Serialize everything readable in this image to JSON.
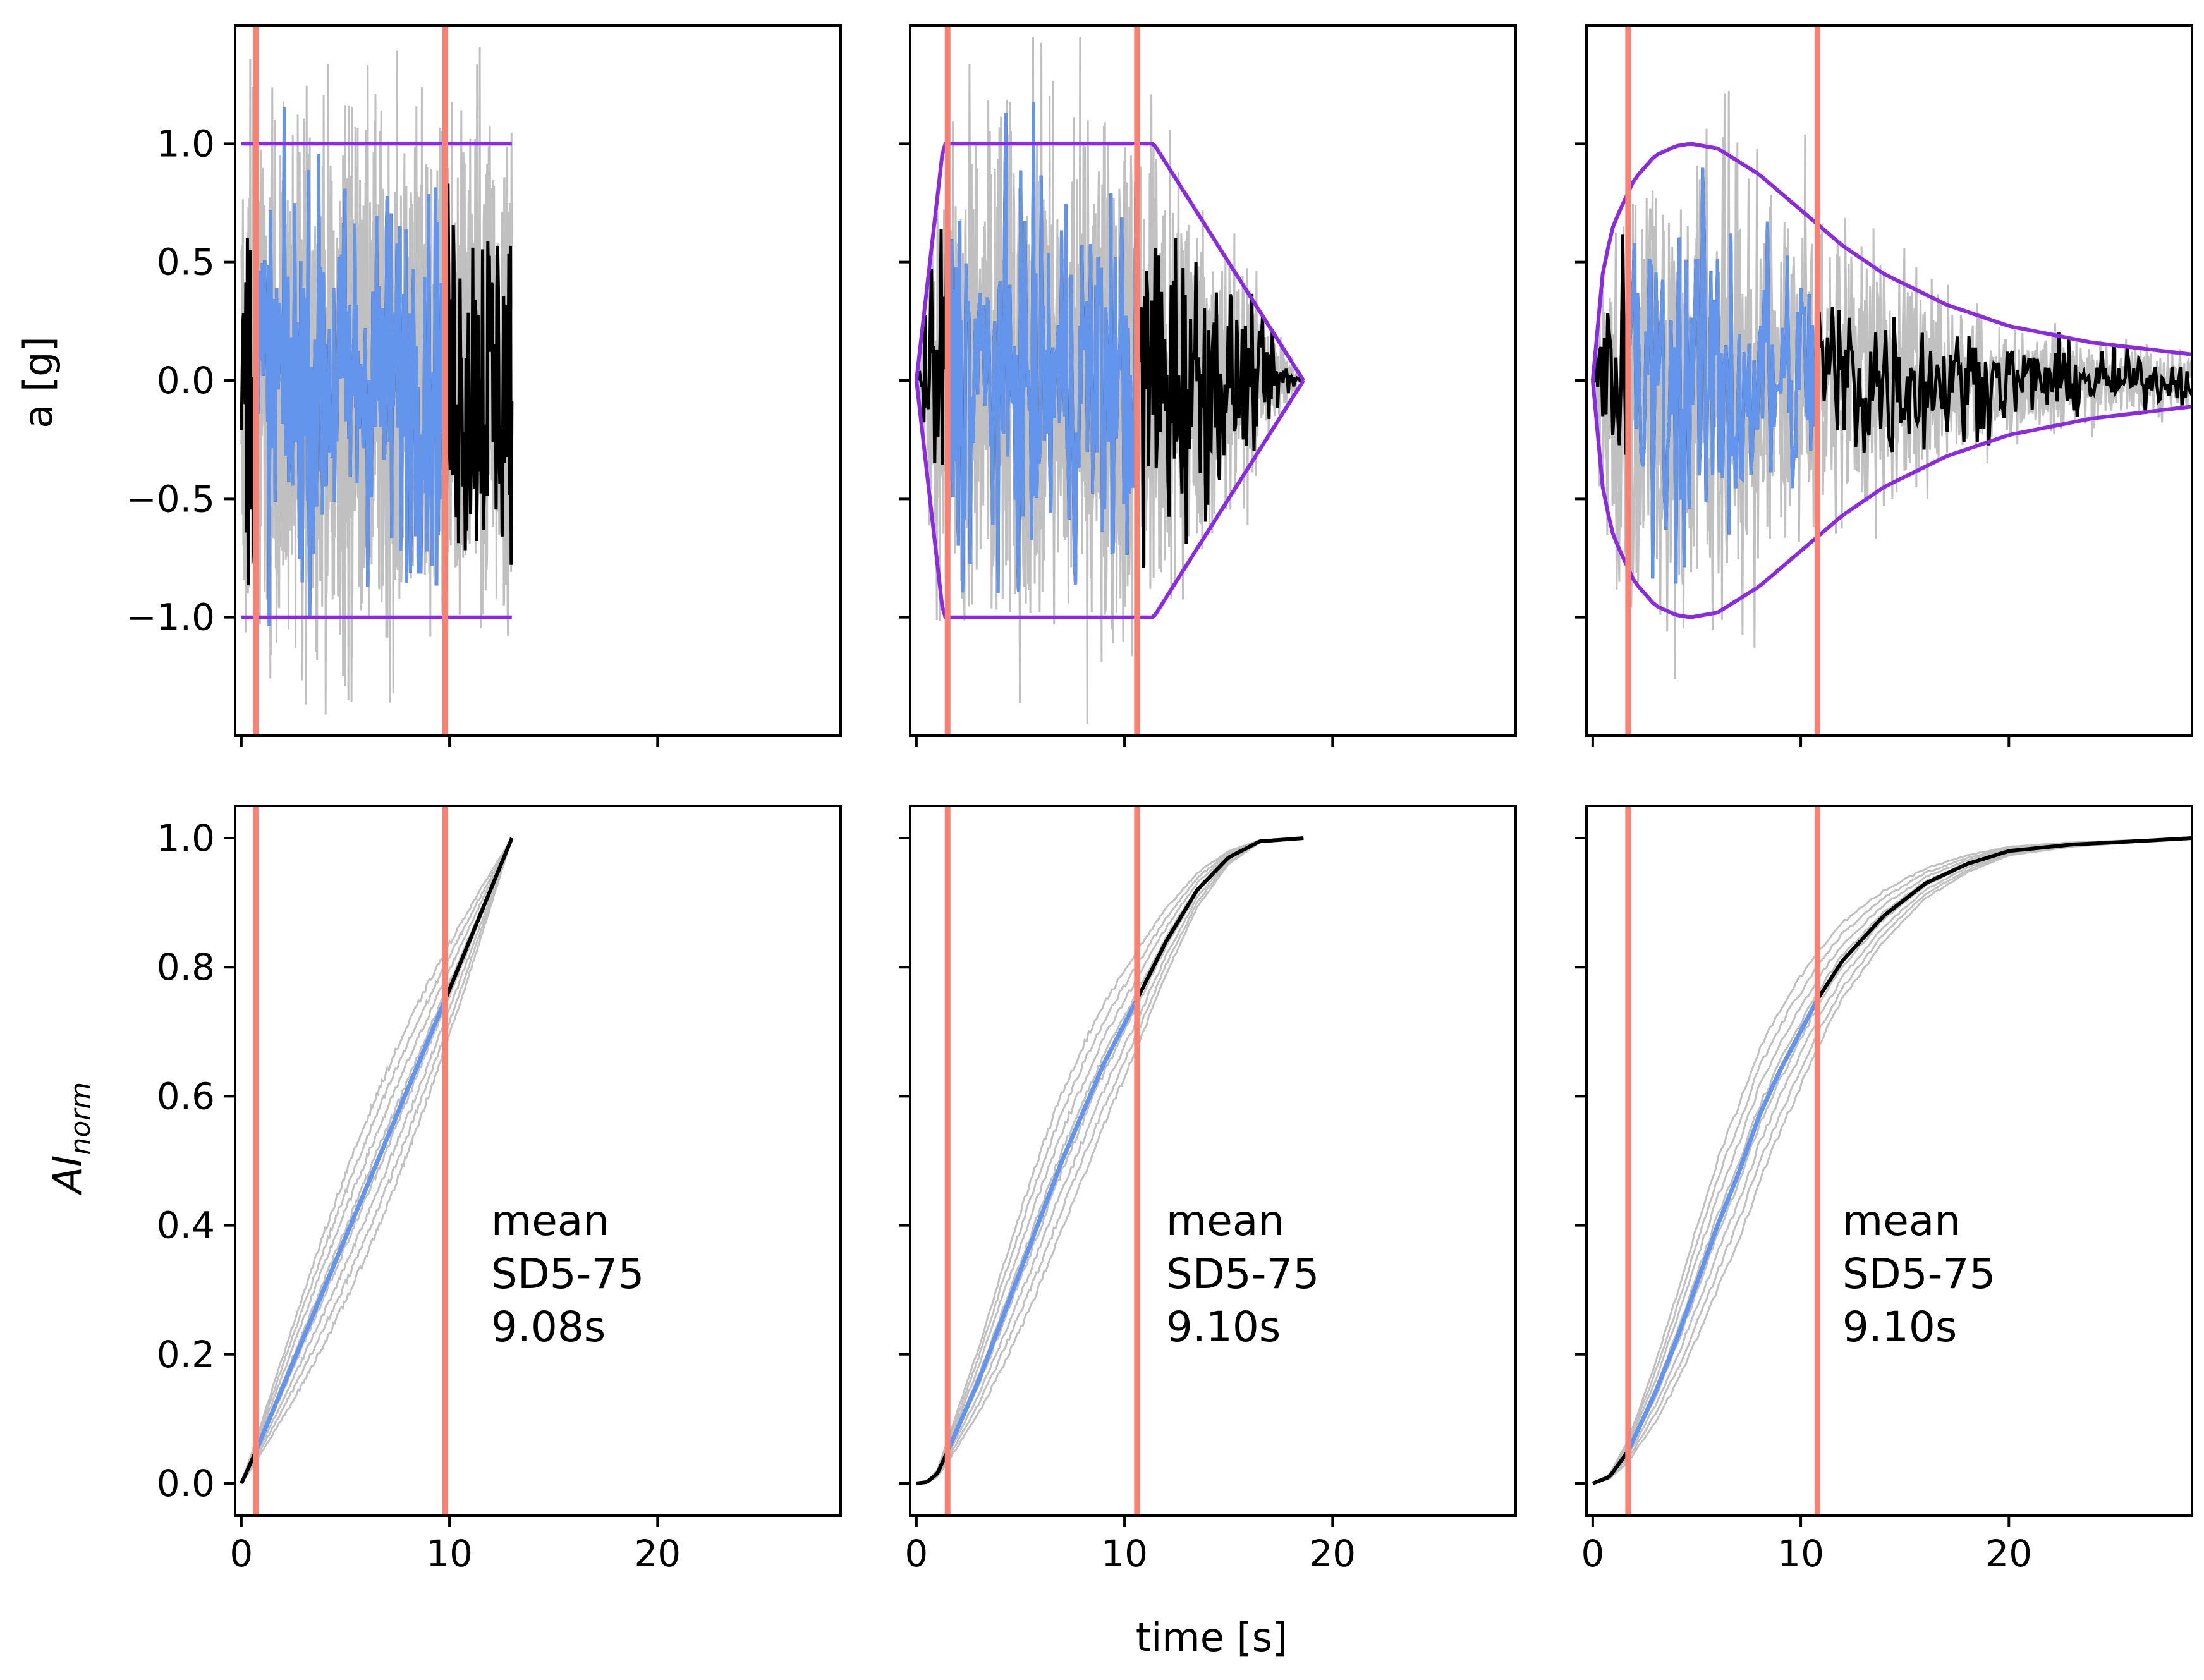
{
  "figure": {
    "ylabel_top": "a [g]",
    "ylabel_bottom_main": "AI",
    "ylabel_bottom_sub": "norm",
    "xlabel": "time [s]"
  },
  "colors": {
    "record": "#000000",
    "significant": "#6495ed",
    "ensemble": "#c0c0c0",
    "envelope": "#8a2be2",
    "marker": "#fa8072"
  },
  "chart_data": [
    {
      "type": "line",
      "name": "acceleration-uniform-envelope",
      "xlabel": "",
      "ylabel": "a [g]",
      "xlim": [
        -0.3,
        28.8
      ],
      "ylim": [
        -1.5,
        1.5
      ],
      "xticks": [
        0,
        10,
        20
      ],
      "yticks": [
        -1.0,
        -0.5,
        0.0,
        0.5,
        1.0
      ],
      "show_x_tick_labels": false,
      "show_y_tick_labels": true,
      "duration": 13.0,
      "sd_start": 0.7,
      "sd_end": 9.8,
      "envelope": {
        "x": [
          0,
          13
        ],
        "y": [
          1.0,
          1.0
        ]
      }
    },
    {
      "type": "line",
      "name": "acceleration-trapezoidal-envelope",
      "xlabel": "",
      "ylabel": "",
      "xlim": [
        -0.3,
        28.8
      ],
      "ylim": [
        -1.5,
        1.5
      ],
      "xticks": [
        0,
        10,
        20
      ],
      "yticks": [
        -1.0,
        -0.5,
        0.0,
        0.5,
        1.0
      ],
      "show_x_tick_labels": false,
      "show_y_tick_labels": false,
      "duration": 18.6,
      "sd_start": 1.5,
      "sd_end": 10.6,
      "envelope": {
        "x": [
          0,
          1.3,
          11.4,
          18.6
        ],
        "y": [
          0.0,
          1.0,
          1.0,
          0.0
        ]
      }
    },
    {
      "type": "line",
      "name": "acceleration-smooth-envelope",
      "xlabel": "",
      "ylabel": "",
      "xlim": [
        -0.3,
        28.8
      ],
      "ylim": [
        -1.5,
        1.5
      ],
      "xticks": [
        0,
        10,
        20
      ],
      "yticks": [
        -1.0,
        -0.5,
        0.0,
        0.5,
        1.0
      ],
      "show_x_tick_labels": false,
      "show_y_tick_labels": false,
      "duration": 28.8,
      "sd_start": 1.7,
      "sd_end": 10.8,
      "envelope": {
        "x": [
          0,
          0.5,
          1,
          2,
          3,
          4,
          4.7,
          6,
          8,
          10,
          12,
          14,
          17,
          20,
          24,
          28.8
        ],
        "y": [
          0.0,
          0.47,
          0.66,
          0.85,
          0.95,
          0.99,
          1.0,
          0.98,
          0.87,
          0.72,
          0.57,
          0.45,
          0.32,
          0.23,
          0.16,
          0.11
        ]
      }
    },
    {
      "type": "line",
      "name": "arias-intensity-uniform",
      "xlabel": "",
      "ylabel": "AI norm",
      "xlim": [
        -0.3,
        28.8
      ],
      "ylim": [
        -0.05,
        1.05
      ],
      "xticks": [
        0,
        10,
        20
      ],
      "yticks": [
        0.0,
        0.2,
        0.4,
        0.6,
        0.8,
        1.0
      ],
      "show_x_tick_labels": true,
      "show_y_tick_labels": true,
      "duration": 13.0,
      "sd_start": 0.7,
      "sd_end": 9.8,
      "curve": {
        "x": [
          0,
          0.7,
          9.8,
          13.0
        ],
        "y": [
          0.0,
          0.05,
          0.75,
          1.0
        ]
      },
      "annotation": [
        "mean",
        "SD5-75",
        "9.08s"
      ]
    },
    {
      "type": "line",
      "name": "arias-intensity-trapezoidal",
      "xlabel": "",
      "ylabel": "",
      "xlim": [
        -0.3,
        28.8
      ],
      "ylim": [
        -0.05,
        1.05
      ],
      "xticks": [
        0,
        10,
        20
      ],
      "yticks": [
        0.0,
        0.2,
        0.4,
        0.6,
        0.8,
        1.0
      ],
      "show_x_tick_labels": true,
      "show_y_tick_labels": false,
      "duration": 18.6,
      "sd_start": 1.5,
      "sd_end": 10.6,
      "curve": {
        "x": [
          0,
          0.5,
          1.0,
          1.5,
          3,
          5,
          7,
          9,
          10.6,
          12,
          13.5,
          15,
          16.5,
          18.6
        ],
        "y": [
          0.0,
          0.002,
          0.015,
          0.05,
          0.16,
          0.33,
          0.5,
          0.65,
          0.75,
          0.84,
          0.92,
          0.97,
          0.995,
          1.0
        ]
      },
      "annotation": [
        "mean",
        "SD5-75",
        "9.10s"
      ]
    },
    {
      "type": "line",
      "name": "arias-intensity-smooth",
      "xlabel": "",
      "ylabel": "",
      "xlim": [
        -0.3,
        28.8
      ],
      "ylim": [
        -0.05,
        1.05
      ],
      "xticks": [
        0,
        10,
        20
      ],
      "yticks": [
        0.0,
        0.2,
        0.4,
        0.6,
        0.8,
        1.0
      ],
      "show_x_tick_labels": true,
      "show_y_tick_labels": false,
      "duration": 28.8,
      "sd_start": 1.7,
      "sd_end": 10.8,
      "curve": {
        "x": [
          0,
          0.8,
          1.7,
          3,
          4,
          5,
          6,
          7,
          8,
          9,
          10.8,
          12,
          14,
          16,
          18,
          20,
          23,
          26,
          28.8
        ],
        "y": [
          0.0,
          0.01,
          0.05,
          0.14,
          0.22,
          0.31,
          0.4,
          0.48,
          0.57,
          0.64,
          0.75,
          0.81,
          0.88,
          0.93,
          0.96,
          0.98,
          0.99,
          0.995,
          1.0
        ]
      },
      "annotation": [
        "mean",
        "SD5-75",
        "9.10s"
      ]
    }
  ]
}
